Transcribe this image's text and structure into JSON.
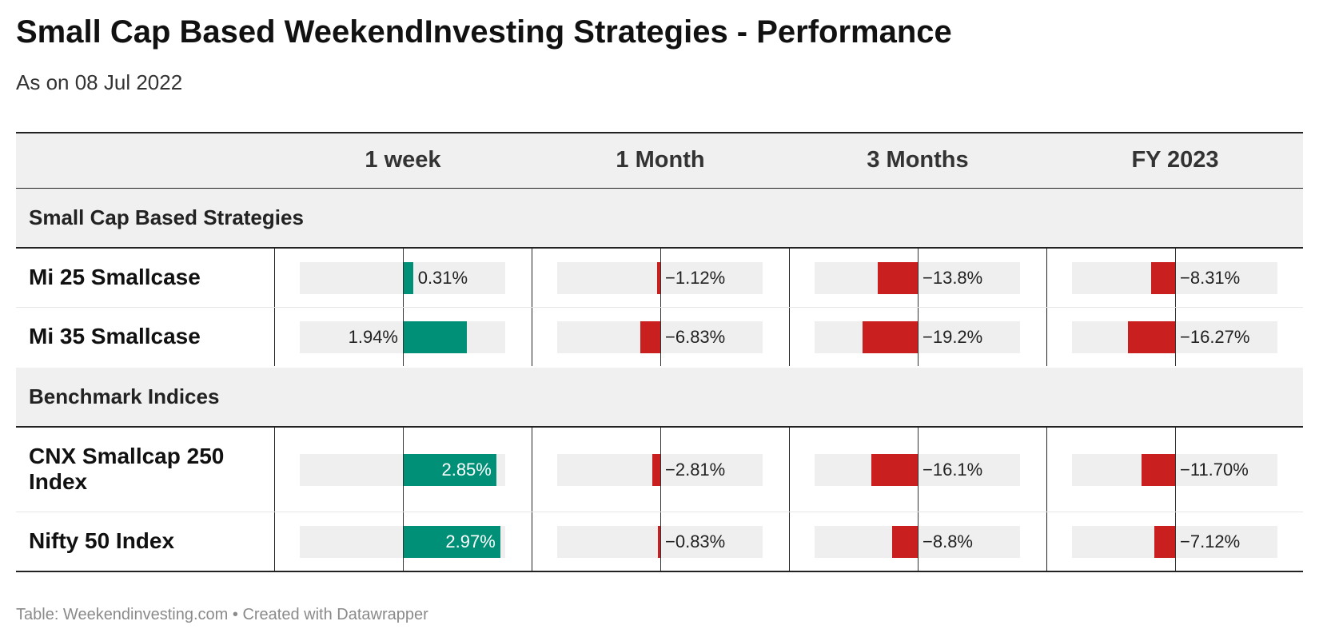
{
  "title": "Small Cap Based WeekendInvesting Strategies - Performance",
  "subtitle": "As on 08 Jul 2022",
  "footer": "Table: Weekendinvesting.com • Created with Datawrapper",
  "colors": {
    "positive": "#009078",
    "negative": "#c91f1f",
    "track": "#efefef",
    "header_bg": "#f0f0f0"
  },
  "chart_data": {
    "type": "table",
    "columns": [
      "1 week",
      "1 Month",
      "3 Months",
      "FY 2023"
    ],
    "groups": [
      {
        "label": "Small Cap Based Strategies",
        "rows": [
          {
            "name": "Mi 25 Smallcase",
            "values": [
              0.31,
              -1.12,
              -13.8,
              -8.31
            ],
            "labels": [
              "0.31%",
              "−1.12%",
              "−13.8%",
              "−8.31%"
            ]
          },
          {
            "name": "Mi 35 Smallcase",
            "values": [
              1.94,
              -6.83,
              -19.2,
              -16.27
            ],
            "labels": [
              "1.94%",
              "−6.83%",
              "−19.2%",
              "−16.27%"
            ]
          }
        ]
      },
      {
        "label": "Benchmark Indices",
        "rows": [
          {
            "name": "CNX Smallcap 250 Index",
            "values": [
              2.85,
              -2.81,
              -16.1,
              -11.7
            ],
            "labels": [
              "2.85%",
              "−2.81%",
              "−16.1%",
              "−11.70%"
            ]
          },
          {
            "name": "Nifty 50 Index",
            "values": [
              2.97,
              -0.83,
              -8.8,
              -7.12
            ],
            "labels": [
              "2.97%",
              "−0.83%",
              "−8.8%",
              "−7.12%"
            ]
          }
        ]
      }
    ],
    "column_ranges": [
      [
        -6,
        3
      ],
      [
        -40,
        20
      ],
      [
        -40,
        20
      ],
      [
        -40,
        20
      ]
    ]
  }
}
